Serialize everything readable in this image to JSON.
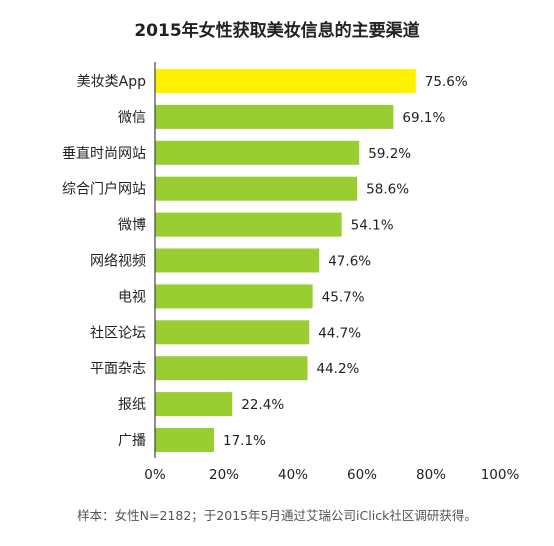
{
  "chart_data": {
    "type": "bar",
    "orientation": "horizontal",
    "title": "2015年女性获取美妆信息的主要渠道",
    "categories": [
      "美妆类App",
      "微信",
      "垂直时尚网站",
      "综合门户网站",
      "微博",
      "网络视频",
      "电视",
      "社区论坛",
      "平面杂志",
      "报纸",
      "广播"
    ],
    "values": [
      75.6,
      69.1,
      59.2,
      58.6,
      54.1,
      47.6,
      45.7,
      44.7,
      44.2,
      22.4,
      17.1
    ],
    "value_labels": [
      "75.6%",
      "69.1%",
      "59.2%",
      "58.6%",
      "54.1%",
      "47.6%",
      "45.7%",
      "44.7%",
      "44.2%",
      "22.4%",
      "17.1%"
    ],
    "x_ticks": [
      "0%",
      "20%",
      "40%",
      "60%",
      "80%",
      "100%"
    ],
    "xlim": [
      0,
      100
    ],
    "grid": false,
    "legend": "none",
    "colors": {
      "highlight": "#FFF200",
      "bar": "#9ACD32",
      "axis": "#444444"
    },
    "highlight_index": 0,
    "note": "样本：女性N=2182；于2015年5月通过艾瑞公司iClick社区调研获得。"
  }
}
